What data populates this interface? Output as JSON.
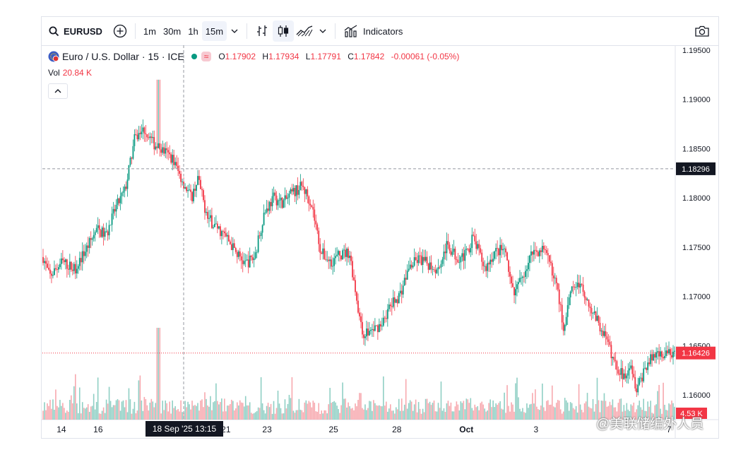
{
  "toolbar": {
    "symbol": "EURUSD",
    "timeframes": [
      "1m",
      "30m",
      "1h",
      "15m"
    ],
    "active_timeframe": "15m",
    "indicators_label": "Indicators"
  },
  "legend": {
    "name": "Euro / U.S. Dollar · 15 · ICE",
    "o_label": "O",
    "o": "1.17902",
    "h_label": "H",
    "h": "1.17934",
    "l_label": "L",
    "l": "1.17791",
    "c_label": "C",
    "c": "1.17842",
    "change": "-0.00061 (-0.05%)",
    "vol_label": "Vol",
    "vol_value": "20.84 K"
  },
  "colors": {
    "up": "#089981",
    "down": "#f23645",
    "vol_up": "#8fcfc4",
    "vol_down": "#f7a8ae"
  },
  "watermark": "@美联储编外人员",
  "chart_data": {
    "type": "candlestick",
    "symbol": "EURUSD",
    "interval": "15",
    "ylim": [
      1.1575,
      1.1955
    ],
    "y_ticks": [
      "1.19500",
      "1.19000",
      "1.18500",
      "1.18000",
      "1.17500",
      "1.17000",
      "1.16500",
      "1.16000"
    ],
    "y_tick_values": [
      1.195,
      1.19,
      1.185,
      1.18,
      1.175,
      1.17,
      1.165,
      1.16
    ],
    "x_ticks": [
      "14",
      "16",
      "21",
      "23",
      "25",
      "28",
      "Oct",
      "3",
      "7"
    ],
    "crosshair": {
      "price": "1.18296",
      "price_value": 1.18296,
      "time": "18 Sep '25   13:15"
    },
    "last_price": {
      "label": "1.16426",
      "value": 1.16426
    },
    "volume_label": "4.53 K",
    "path": [
      [
        0,
        1.174
      ],
      [
        0.01,
        1.172
      ],
      [
        0.03,
        1.1735
      ],
      [
        0.05,
        1.1728
      ],
      [
        0.07,
        1.175
      ],
      [
        0.085,
        1.1768
      ],
      [
        0.1,
        1.1762
      ],
      [
        0.115,
        1.179
      ],
      [
        0.13,
        1.1808
      ],
      [
        0.145,
        1.186
      ],
      [
        0.16,
        1.187
      ],
      [
        0.175,
        1.1855
      ],
      [
        0.19,
        1.1848
      ],
      [
        0.205,
        1.184
      ],
      [
        0.215,
        1.1825
      ],
      [
        0.225,
        1.1812
      ],
      [
        0.235,
        1.18
      ],
      [
        0.245,
        1.182
      ],
      [
        0.26,
        1.178
      ],
      [
        0.275,
        1.177
      ],
      [
        0.29,
        1.176
      ],
      [
        0.305,
        1.1745
      ],
      [
        0.32,
        1.1733
      ],
      [
        0.335,
        1.174
      ],
      [
        0.35,
        1.1785
      ],
      [
        0.365,
        1.18
      ],
      [
        0.38,
        1.1795
      ],
      [
        0.395,
        1.1805
      ],
      [
        0.41,
        1.1812
      ],
      [
        0.425,
        1.1795
      ],
      [
        0.44,
        1.1745
      ],
      [
        0.455,
        1.1735
      ],
      [
        0.47,
        1.1742
      ],
      [
        0.485,
        1.1745
      ],
      [
        0.495,
        1.1705
      ],
      [
        0.505,
        1.1662
      ],
      [
        0.52,
        1.1665
      ],
      [
        0.535,
        1.1672
      ],
      [
        0.55,
        1.169
      ],
      [
        0.565,
        1.1702
      ],
      [
        0.58,
        1.173
      ],
      [
        0.595,
        1.1738
      ],
      [
        0.61,
        1.1733
      ],
      [
        0.625,
        1.1728
      ],
      [
        0.64,
        1.1752
      ],
      [
        0.655,
        1.174
      ],
      [
        0.67,
        1.1742
      ],
      [
        0.68,
        1.176
      ],
      [
        0.69,
        1.1745
      ],
      [
        0.7,
        1.1728
      ],
      [
        0.715,
        1.1745
      ],
      [
        0.73,
        1.1748
      ],
      [
        0.745,
        1.17
      ],
      [
        0.76,
        1.1722
      ],
      [
        0.775,
        1.1745
      ],
      [
        0.79,
        1.1748
      ],
      [
        0.805,
        1.173
      ],
      [
        0.815,
        1.1705
      ],
      [
        0.825,
        1.1665
      ],
      [
        0.835,
        1.171
      ],
      [
        0.85,
        1.1712
      ],
      [
        0.86,
        1.17
      ],
      [
        0.875,
        1.1678
      ],
      [
        0.89,
        1.166
      ],
      [
        0.905,
        1.1632
      ],
      [
        0.92,
        1.1618
      ],
      [
        0.93,
        1.1635
      ],
      [
        0.94,
        1.1605
      ],
      [
        0.955,
        1.163
      ],
      [
        0.97,
        1.1642
      ]
    ]
  }
}
